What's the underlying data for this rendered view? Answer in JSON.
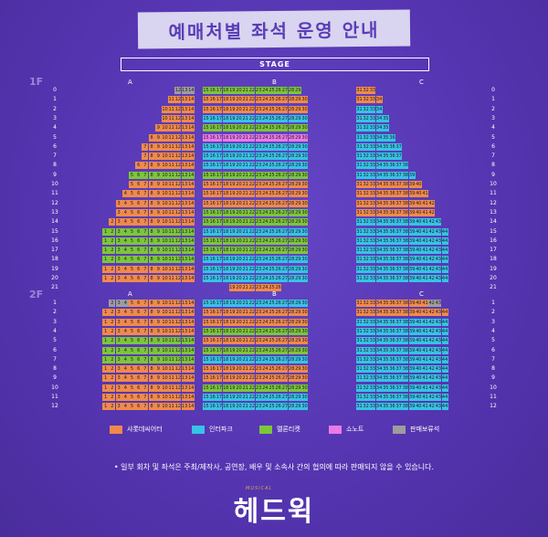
{
  "title": "예매처별 좌석 운영 안내",
  "stage": "STAGE",
  "floors": {
    "first": "1F",
    "second": "2F"
  },
  "sections": {
    "a": "A",
    "b": "B",
    "c": "C"
  },
  "colors": {
    "lotte": "#f08a4b",
    "interpark": "#36c3e6",
    "melon": "#7cc63a",
    "show": "#e97ae6",
    "hold": "#9d9d9d"
  },
  "legend": [
    {
      "key": "lotte",
      "label": "샤롯데씨어터"
    },
    {
      "key": "interpark",
      "label": "인터파크"
    },
    {
      "key": "melon",
      "label": "멜론티켓"
    },
    {
      "key": "show",
      "label": "쇼노트"
    },
    {
      "key": "hold",
      "label": "판매보류석"
    }
  ],
  "notice": "• 일부 회차 및 좌석은 주최/제작사, 공연장, 배우 및 소속사 간의 협의에 따라 판매되지 않을 수 있습니다.",
  "logo_small": "MUSICAL",
  "logo": "헤드윅",
  "seatmap": {
    "floor1": {
      "rows": [
        "0",
        "1",
        "2",
        "3",
        "4",
        "5",
        "6",
        "7",
        "8",
        "9",
        "10",
        "11",
        "12",
        "13",
        "14",
        "15",
        "16",
        "17",
        "18",
        "19",
        "20",
        "21"
      ],
      "A": [
        {
          "from": 12,
          "to": 14,
          "c": "hold:12-13,lotte:14"
        },
        {
          "from": 11,
          "to": 14,
          "c": "lotte"
        },
        {
          "from": 10,
          "to": 14,
          "c": "lotte"
        },
        {
          "from": 10,
          "to": 14,
          "c": "lotte"
        },
        {
          "from": 9,
          "to": 14,
          "c": "lotte"
        },
        {
          "from": 8,
          "to": 14,
          "c": "lotte"
        },
        {
          "from": 7,
          "to": 14,
          "c": "lotte"
        },
        {
          "from": 7,
          "to": 14,
          "c": "lotte"
        },
        {
          "from": 6,
          "to": 14,
          "c": "lotte"
        },
        {
          "from": 5,
          "to": 14,
          "c": "melon"
        },
        {
          "from": 5,
          "to": 14,
          "c": "lotte"
        },
        {
          "from": 4,
          "to": 14,
          "c": "lotte"
        },
        {
          "from": 3,
          "to": 14,
          "c": "lotte"
        },
        {
          "from": 3,
          "to": 14,
          "c": "lotte"
        },
        {
          "from": 2,
          "to": 14,
          "c": "lotte"
        },
        {
          "from": 1,
          "to": 14,
          "c": "melon"
        },
        {
          "from": 1,
          "to": 14,
          "c": "melon"
        },
        {
          "from": 1,
          "to": 14,
          "c": "melon"
        },
        {
          "from": 1,
          "to": 14,
          "c": "melon"
        },
        {
          "from": 1,
          "to": 14,
          "c": "lotte"
        },
        {
          "from": 1,
          "to": 14,
          "c": "lotte"
        },
        {
          "from": 0,
          "to": -1,
          "c": "lotte"
        }
      ],
      "B": [
        {
          "from": 15,
          "to": 29,
          "c": "melon"
        },
        {
          "from": 15,
          "to": 30,
          "c": "lotte"
        },
        {
          "from": 15,
          "to": 30,
          "c": "lotte"
        },
        {
          "from": 15,
          "to": 30,
          "c": "interpark"
        },
        {
          "from": 15,
          "to": 30,
          "c": "melon"
        },
        {
          "from": 15,
          "to": 30,
          "c": "show"
        },
        {
          "from": 15,
          "to": 30,
          "c": "interpark"
        },
        {
          "from": 15,
          "to": 30,
          "c": "interpark"
        },
        {
          "from": 15,
          "to": 30,
          "c": "interpark"
        },
        {
          "from": 15,
          "to": 30,
          "c": "melon"
        },
        {
          "from": 15,
          "to": 30,
          "c": "lotte"
        },
        {
          "from": 15,
          "to": 30,
          "c": "lotte"
        },
        {
          "from": 15,
          "to": 30,
          "c": "lotte"
        },
        {
          "from": 15,
          "to": 30,
          "c": "melon"
        },
        {
          "from": 15,
          "to": 30,
          "c": "melon"
        },
        {
          "from": 15,
          "to": 30,
          "c": "interpark"
        },
        {
          "from": 15,
          "to": 30,
          "c": "melon"
        },
        {
          "from": 15,
          "to": 30,
          "c": "melon"
        },
        {
          "from": 15,
          "to": 30,
          "c": "interpark"
        },
        {
          "from": 15,
          "to": 30,
          "c": "interpark"
        },
        {
          "from": 15,
          "to": 30,
          "c": "interpark"
        },
        {
          "from": 19,
          "to": 26,
          "c": "lotte"
        }
      ],
      "C": [
        {
          "from": 31,
          "to": 33,
          "c": "lotte"
        },
        {
          "from": 31,
          "to": 34,
          "c": "lotte"
        },
        {
          "from": 31,
          "to": 34,
          "c": "interpark"
        },
        {
          "from": 31,
          "to": 35,
          "c": "interpark"
        },
        {
          "from": 31,
          "to": 35,
          "c": "interpark"
        },
        {
          "from": 31,
          "to": 36,
          "c": "interpark"
        },
        {
          "from": 31,
          "to": 37,
          "c": "interpark"
        },
        {
          "from": 31,
          "to": 37,
          "c": "interpark"
        },
        {
          "from": 31,
          "to": 38,
          "c": "interpark"
        },
        {
          "from": 31,
          "to": 39,
          "c": "interpark"
        },
        {
          "from": 31,
          "to": 40,
          "c": "lotte"
        },
        {
          "from": 31,
          "to": 41,
          "c": "lotte"
        },
        {
          "from": 31,
          "to": 42,
          "c": "lotte"
        },
        {
          "from": 31,
          "to": 42,
          "c": "lotte"
        },
        {
          "from": 31,
          "to": 43,
          "c": "interpark"
        },
        {
          "from": 31,
          "to": 44,
          "c": "interpark"
        },
        {
          "from": 31,
          "to": 44,
          "c": "interpark"
        },
        {
          "from": 31,
          "to": 44,
          "c": "interpark"
        },
        {
          "from": 31,
          "to": 44,
          "c": "interpark"
        },
        {
          "from": 31,
          "to": 44,
          "c": "interpark"
        },
        {
          "from": 31,
          "to": 44,
          "c": "interpark"
        },
        {
          "from": 0,
          "to": -1,
          "c": "interpark"
        }
      ]
    },
    "floor2": {
      "rows": [
        "1",
        "2",
        "3",
        "4",
        "5",
        "6",
        "7",
        "8",
        "9",
        "10",
        "11",
        "12"
      ],
      "A": [
        {
          "from": 2,
          "to": 14,
          "c": "hold:2-4,lotte:5-14"
        },
        {
          "from": 1,
          "to": 14,
          "c": "lotte"
        },
        {
          "from": 1,
          "to": 14,
          "c": "lotte"
        },
        {
          "from": 1,
          "to": 14,
          "c": "lotte"
        },
        {
          "from": 1,
          "to": 14,
          "c": "melon"
        },
        {
          "from": 1,
          "to": 14,
          "c": "melon"
        },
        {
          "from": 1,
          "to": 14,
          "c": "melon"
        },
        {
          "from": 1,
          "to": 14,
          "c": "lotte"
        },
        {
          "from": 1,
          "to": 14,
          "c": "lotte"
        },
        {
          "from": 1,
          "to": 14,
          "c": "lotte"
        },
        {
          "from": 1,
          "to": 14,
          "c": "lotte"
        },
        {
          "from": 1,
          "to": 14,
          "c": "lotte"
        }
      ],
      "B": [
        {
          "from": 15,
          "to": 30,
          "c": "interpark"
        },
        {
          "from": 15,
          "to": 30,
          "c": "lotte"
        },
        {
          "from": 15,
          "to": 30,
          "c": "lotte"
        },
        {
          "from": 15,
          "to": 30,
          "c": "melon"
        },
        {
          "from": 15,
          "to": 30,
          "c": "lotte"
        },
        {
          "from": 15,
          "to": 30,
          "c": "melon"
        },
        {
          "from": 15,
          "to": 30,
          "c": "interpark"
        },
        {
          "from": 15,
          "to": 30,
          "c": "lotte"
        },
        {
          "from": 15,
          "to": 30,
          "c": "lotte"
        },
        {
          "from": 15,
          "to": 30,
          "c": "melon"
        },
        {
          "from": 15,
          "to": 30,
          "c": "interpark"
        },
        {
          "from": 15,
          "to": 30,
          "c": "interpark"
        }
      ],
      "C": [
        {
          "from": 31,
          "to": 43,
          "c": "lotte:31-41,hold:42-43"
        },
        {
          "from": 31,
          "to": 44,
          "c": "lotte"
        },
        {
          "from": 31,
          "to": 44,
          "c": "interpark"
        },
        {
          "from": 31,
          "to": 44,
          "c": "interpark"
        },
        {
          "from": 31,
          "to": 44,
          "c": "interpark"
        },
        {
          "from": 31,
          "to": 44,
          "c": "interpark"
        },
        {
          "from": 31,
          "to": 44,
          "c": "interpark"
        },
        {
          "from": 31,
          "to": 44,
          "c": "interpark"
        },
        {
          "from": 31,
          "to": 44,
          "c": "interpark"
        },
        {
          "from": 31,
          "to": 44,
          "c": "interpark"
        },
        {
          "from": 31,
          "to": 44,
          "c": "interpark"
        },
        {
          "from": 31,
          "to": 44,
          "c": "interpark"
        }
      ]
    }
  }
}
